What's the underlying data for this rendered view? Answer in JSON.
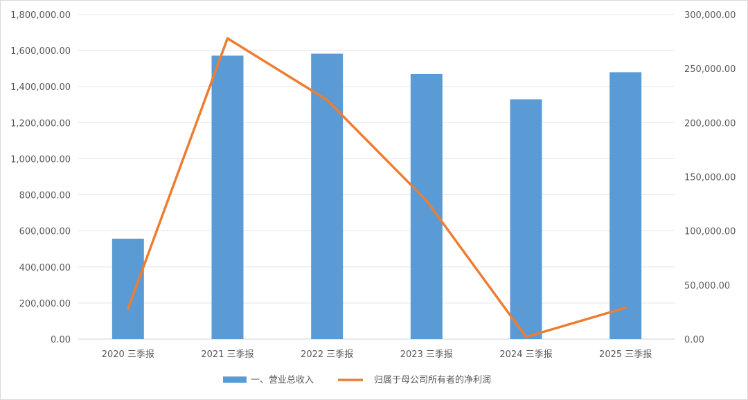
{
  "chart_data": {
    "type": "bar",
    "categories": [
      "2020 三季报",
      "2021 三季报",
      "2022 三季报",
      "2023 三季报",
      "2024 三季报",
      "2025 三季报"
    ],
    "series": [
      {
        "name": "一、营业总收入",
        "type": "bar",
        "axis": "left",
        "color": "#5b9bd5",
        "values": [
          557000,
          1572000,
          1583000,
          1470000,
          1330000,
          1480000
        ]
      },
      {
        "name": "归属于母公司所有者的净利润",
        "type": "line",
        "axis": "right",
        "color": "#ed7d31",
        "values": [
          28000,
          278000,
          221000,
          128000,
          2000,
          29000
        ]
      }
    ],
    "y_left": {
      "ylim": [
        0,
        1800000
      ],
      "ticks": [
        "0.00",
        "200,000.00",
        "400,000.00",
        "600,000.00",
        "800,000.00",
        "1,000,000.00",
        "1,200,000.00",
        "1,400,000.00",
        "1,600,000.00",
        "1,800,000.00"
      ]
    },
    "y_right": {
      "ylim": [
        0,
        300000
      ],
      "ticks": [
        "0.00",
        "50,000.00",
        "100,000.00",
        "150,000.00",
        "200,000.00",
        "250,000.00",
        "300,000.00"
      ]
    },
    "grid": true,
    "legend_position": "bottom"
  }
}
